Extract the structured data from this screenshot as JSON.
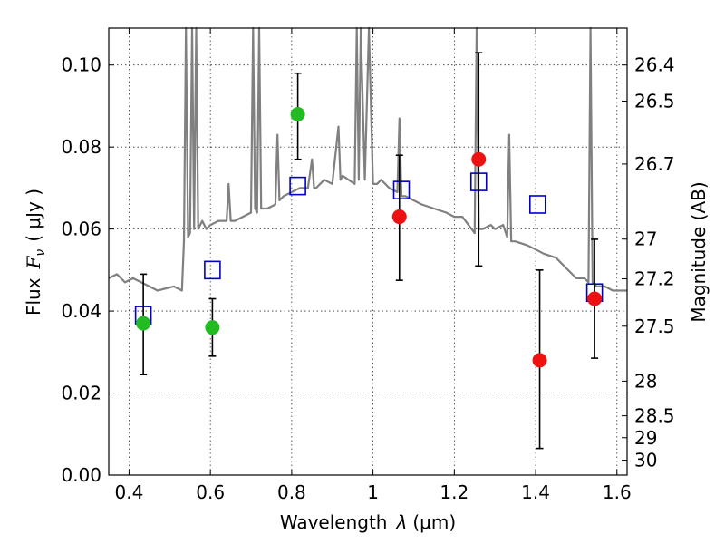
{
  "chart_data": {
    "type": "scatter",
    "xlabel": "Wavelength",
    "xlabel_symbol": "λ",
    "xlabel_unit": "(μm)",
    "ylabel": "Flux",
    "ylabel_symbol": "F",
    "ylabel_subscript": "ν",
    "ylabel_unit": "( μJy )",
    "y2label": "Magnitude (AB)",
    "xlim": [
      0.35,
      1.625
    ],
    "ylim": [
      0.0,
      0.109
    ],
    "grid": true,
    "x_ticks": [
      {
        "value": 0.4,
        "label": "0.4"
      },
      {
        "value": 0.6,
        "label": "0.6"
      },
      {
        "value": 0.8,
        "label": "0.8"
      },
      {
        "value": 1.0,
        "label": "1"
      },
      {
        "value": 1.2,
        "label": "1.2"
      },
      {
        "value": 1.4,
        "label": "1.4"
      },
      {
        "value": 1.6,
        "label": "1.6"
      }
    ],
    "y_ticks": [
      {
        "value": 0.0,
        "label": "0.00"
      },
      {
        "value": 0.02,
        "label": "0.02"
      },
      {
        "value": 0.04,
        "label": "0.04"
      },
      {
        "value": 0.06,
        "label": "0.06"
      },
      {
        "value": 0.08,
        "label": "0.08"
      },
      {
        "value": 0.1,
        "label": "0.10"
      }
    ],
    "y2_ticks": [
      {
        "value": 26.4,
        "label": "26.4"
      },
      {
        "value": 26.5,
        "label": "26.5"
      },
      {
        "value": 26.7,
        "label": "26.7"
      },
      {
        "value": 27.0,
        "label": "27"
      },
      {
        "value": 27.2,
        "label": "27.2"
      },
      {
        "value": 27.5,
        "label": "27.5"
      },
      {
        "value": 28.0,
        "label": "28"
      },
      {
        "value": 28.5,
        "label": "28.5"
      },
      {
        "value": 29.0,
        "label": "29"
      },
      {
        "value": 30.0,
        "label": "30"
      }
    ],
    "series": [
      {
        "marker": "line",
        "color": "#808080",
        "x": [
          0.35,
          0.37,
          0.39,
          0.41,
          0.43,
          0.45,
          0.47,
          0.49,
          0.51,
          0.53,
          0.535,
          0.54,
          0.545,
          0.55,
          0.555,
          0.56,
          0.565,
          0.57,
          0.575,
          0.58,
          0.59,
          0.6,
          0.62,
          0.64,
          0.645,
          0.65,
          0.66,
          0.68,
          0.7,
          0.705,
          0.71,
          0.715,
          0.72,
          0.725,
          0.73,
          0.74,
          0.76,
          0.765,
          0.77,
          0.78,
          0.8,
          0.82,
          0.84,
          0.85,
          0.855,
          0.86,
          0.88,
          0.9,
          0.915,
          0.92,
          0.925,
          0.94,
          0.955,
          0.96,
          0.965,
          0.97,
          0.98,
          0.99,
          1.0,
          1.01,
          1.02,
          1.04,
          1.06,
          1.065,
          1.07,
          1.08,
          1.1,
          1.12,
          1.15,
          1.18,
          1.2,
          1.22,
          1.25,
          1.255,
          1.26,
          1.27,
          1.29,
          1.3,
          1.32,
          1.33,
          1.335,
          1.34,
          1.35,
          1.38,
          1.4,
          1.42,
          1.45,
          1.48,
          1.5,
          1.52,
          1.53,
          1.535,
          1.54,
          1.55,
          1.57,
          1.59,
          1.6,
          1.625
        ],
        "y": [
          0.048,
          0.049,
          0.047,
          0.048,
          0.047,
          0.046,
          0.045,
          0.0455,
          0.046,
          0.045,
          0.057,
          0.109,
          0.058,
          0.059,
          0.109,
          0.06,
          0.109,
          0.06,
          0.061,
          0.062,
          0.06,
          0.061,
          0.062,
          0.062,
          0.071,
          0.062,
          0.062,
          0.063,
          0.064,
          0.109,
          0.065,
          0.064,
          0.109,
          0.065,
          0.065,
          0.065,
          0.066,
          0.083,
          0.067,
          0.068,
          0.069,
          0.07,
          0.07,
          0.077,
          0.07,
          0.07,
          0.072,
          0.071,
          0.085,
          0.072,
          0.073,
          0.072,
          0.071,
          0.109,
          0.072,
          0.109,
          0.072,
          0.109,
          0.071,
          0.071,
          0.072,
          0.07,
          0.069,
          0.087,
          0.068,
          0.068,
          0.067,
          0.066,
          0.065,
          0.064,
          0.063,
          0.063,
          0.059,
          0.109,
          0.06,
          0.06,
          0.061,
          0.06,
          0.061,
          0.058,
          0.083,
          0.057,
          0.057,
          0.056,
          0.055,
          0.054,
          0.053,
          0.05,
          0.048,
          0.048,
          0.047,
          0.109,
          0.047,
          0.046,
          0.046,
          0.045,
          0.045,
          0.045
        ]
      },
      {
        "marker": "square",
        "color": "#0000cc",
        "x": [
          0.435,
          0.605,
          0.815,
          1.07,
          1.26,
          1.405,
          1.545
        ],
        "y": [
          0.039,
          0.05,
          0.0705,
          0.0695,
          0.0715,
          0.066,
          0.0445
        ]
      },
      {
        "marker": "circle",
        "color": "#22bb22",
        "x": [
          0.435,
          0.605,
          0.815
        ],
        "y": [
          0.037,
          0.036,
          0.088
        ],
        "yerr_low": [
          0.0245,
          0.029,
          0.077
        ],
        "yerr_high": [
          0.049,
          0.043,
          0.098
        ]
      },
      {
        "marker": "circle",
        "color": "#ee1111",
        "x": [
          1.065,
          1.26,
          1.41,
          1.545
        ],
        "y": [
          0.063,
          0.077,
          0.028,
          0.043
        ],
        "yerr_low": [
          0.0475,
          0.051,
          0.0065,
          0.0285
        ],
        "yerr_high": [
          0.078,
          0.103,
          0.05,
          0.0575
        ]
      }
    ]
  }
}
